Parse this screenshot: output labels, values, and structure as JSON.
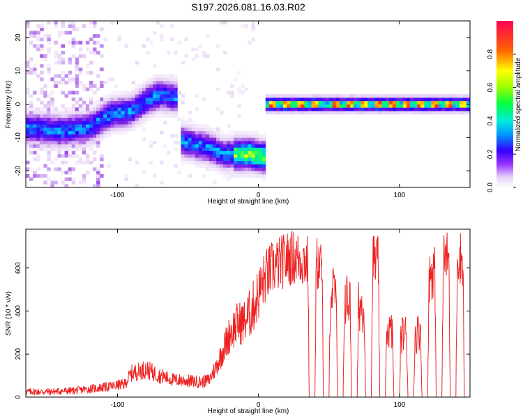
{
  "figure": {
    "title": "S197.2026.081.16.03.R02"
  },
  "chart_data": [
    {
      "type": "heatmap",
      "xlabel": "Height of straight line (km)",
      "ylabel": "Frequency (Hz)",
      "xlim": [
        -165,
        150
      ],
      "ylim": [
        -25,
        25
      ],
      "xticks": [
        -100,
        0,
        100
      ],
      "xtick_labels": [
        "-100",
        "0",
        "100"
      ],
      "yticks": [
        -20,
        -10,
        0,
        10,
        20
      ],
      "ytick_labels": [
        "-20",
        "-10",
        "0",
        "10",
        "20"
      ],
      "colorbar": {
        "label": "Normalized spectral amplitude",
        "range": [
          0,
          1
        ],
        "ticks": [
          0,
          0.2,
          0.4,
          0.6,
          0.8
        ],
        "tick_labels": [
          "0.0",
          "0.2",
          "0.4",
          "0.6",
          "0.8"
        ]
      },
      "ridges": [
        {
          "x": [
            -165,
            -140,
            -120,
            -105,
            -90,
            -80,
            -70,
            -58
          ],
          "y": [
            -7,
            -8,
            -7,
            -3,
            -2,
            1,
            3,
            2
          ]
        },
        {
          "x": [
            -55,
            -45,
            -35,
            -25,
            -15,
            -5,
            5
          ],
          "y": [
            -11,
            -12,
            -13,
            -15,
            -15,
            -15,
            -16
          ]
        },
        {
          "x": [
            5,
            150
          ],
          "y": [
            0,
            0
          ]
        }
      ],
      "peaks_x": [
        10,
        20,
        30,
        40,
        55,
        65,
        75,
        85,
        95,
        105,
        115,
        125,
        135,
        145
      ],
      "colors": [
        "#ffffff",
        "#e6d0f5",
        "#8a2be2",
        "#3300ff",
        "#00ccff",
        "#00ff66",
        "#ffff00",
        "#ff6600",
        "#ff0044"
      ]
    },
    {
      "type": "line",
      "xlabel": "Height of straight line (km)",
      "ylabel": "SNR (10 * v/v)",
      "xlim": [
        -165,
        150
      ],
      "ylim": [
        0,
        780
      ],
      "xticks": [
        -100,
        0,
        100
      ],
      "xtick_labels": [
        "-100",
        "0",
        "100"
      ],
      "yticks": [
        0,
        200,
        400,
        600
      ],
      "ytick_labels": [
        "0",
        "200",
        "400",
        "600"
      ],
      "line_color": "#ee2222",
      "x": [
        -165,
        -150,
        -130,
        -110,
        -95,
        -90,
        -80,
        -70,
        -60,
        -50,
        -40,
        -35,
        -30,
        -25,
        -20,
        -15,
        -10,
        -5,
        0,
        5,
        10,
        15,
        20,
        25,
        30,
        35,
        36,
        40,
        41,
        45,
        46,
        50,
        51,
        55,
        56,
        60,
        61,
        65,
        66,
        70,
        71,
        75,
        76,
        80,
        81,
        85,
        86,
        90,
        91,
        95,
        96,
        100,
        101,
        105,
        106,
        110,
        111,
        115,
        116,
        120,
        121,
        125,
        126,
        130,
        131,
        135,
        136,
        140,
        141,
        145,
        146,
        150
      ],
      "y": [
        25,
        25,
        30,
        45,
        60,
        110,
        130,
        100,
        80,
        75,
        70,
        80,
        140,
        220,
        300,
        340,
        350,
        400,
        480,
        560,
        600,
        620,
        640,
        650,
        640,
        630,
        0,
        0,
        620,
        610,
        0,
        0,
        500,
        480,
        0,
        0,
        460,
        440,
        0,
        0,
        430,
        420,
        0,
        0,
        640,
        620,
        0,
        0,
        320,
        300,
        0,
        0,
        290,
        300,
        0,
        0,
        280,
        320,
        0,
        0,
        560,
        600,
        0,
        0,
        640,
        650,
        0,
        0,
        660,
        640,
        0,
        0
      ]
    }
  ]
}
